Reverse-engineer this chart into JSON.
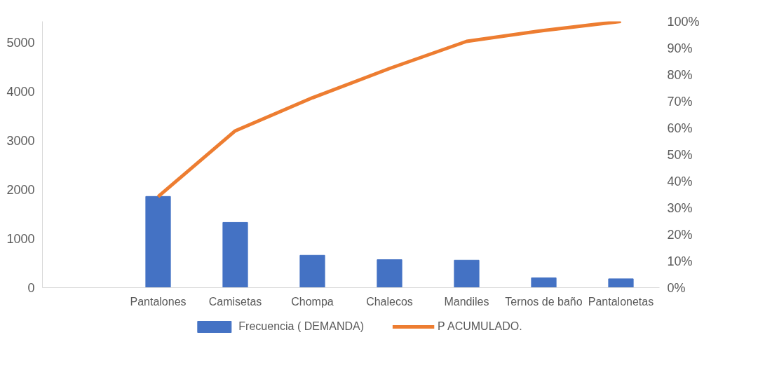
{
  "chart_data": {
    "type": "bar",
    "categories": [
      null,
      "Pantalones",
      "Camisetas",
      "Chompa",
      "Chalecos",
      "Mandiles",
      "Ternos de baño",
      "Pantalonetas"
    ],
    "series": [
      {
        "name": "Frecuencia ( DEMANDA)",
        "color": "#4472c4",
        "values": [
          null,
          1860,
          1330,
          660,
          570,
          560,
          200,
          180
        ]
      },
      {
        "name": "P ACUMULADO.",
        "type": "line",
        "axis": "y2",
        "color": "#ed7d31",
        "values": [
          null,
          34.2,
          58.9,
          71.3,
          82.3,
          92.5,
          96.6,
          100
        ]
      }
    ],
    "ylim": [
      0,
      5430
    ],
    "yticks": [
      0,
      1000,
      2000,
      3000,
      4000,
      5000
    ],
    "y2lim": [
      0,
      100
    ],
    "y2ticks": [
      {
        "value": 0,
        "label": "0%"
      },
      {
        "value": 10,
        "label": "10%"
      },
      {
        "value": 20,
        "label": "20%"
      },
      {
        "value": 30,
        "label": "30%"
      },
      {
        "value": 40,
        "label": "40%"
      },
      {
        "value": 50,
        "label": "50%"
      },
      {
        "value": 60,
        "label": "60%"
      },
      {
        "value": 70,
        "label": "70%"
      },
      {
        "value": 80,
        "label": "80%"
      },
      {
        "value": 90,
        "label": "90%"
      },
      {
        "value": 100,
        "label": "100%"
      }
    ],
    "grid": false,
    "legend": "bottom",
    "line_style": "solid",
    "marker": "none"
  }
}
